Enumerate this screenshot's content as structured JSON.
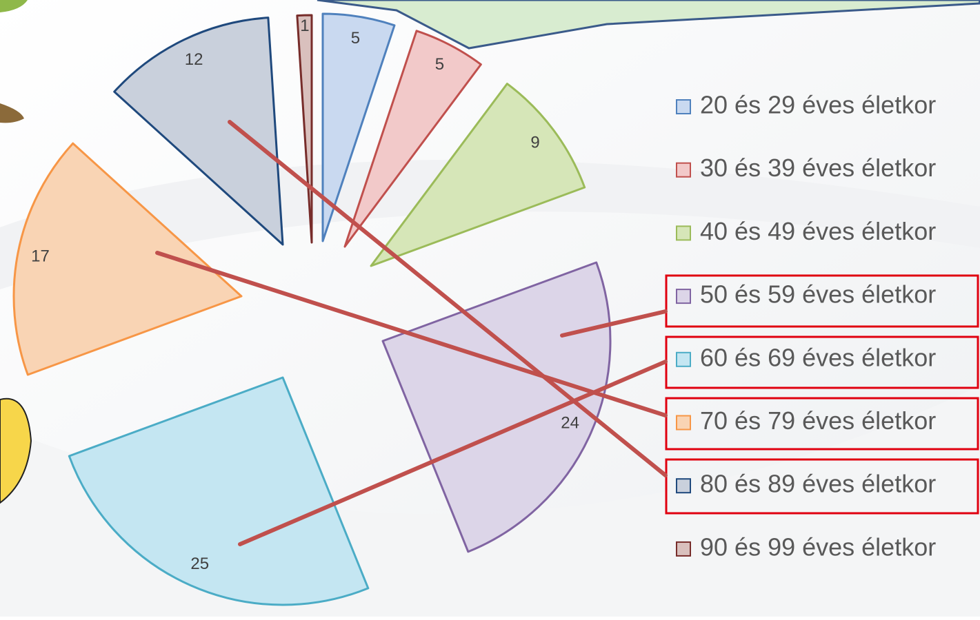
{
  "chart_data": {
    "type": "pie",
    "categories": [
      "20 és 29 éves életkor",
      "30 és 39 éves életkor",
      "40 és 49 éves életkor",
      "50 és 59 éves életkor",
      "60 és 69 éves életkor",
      "70 és 79 éves életkor",
      "80 és 89 éves életkor",
      "90 és 99 éves életkor"
    ],
    "values": [
      5,
      5,
      9,
      24,
      25,
      17,
      12,
      1
    ],
    "colors": [
      "#c9d9f0",
      "#f2c9c9",
      "#d6e6b8",
      "#dcd5e8",
      "#c4e6f2",
      "#f9d4b4",
      "#c9d0dc",
      "#d9c0bd"
    ],
    "legend": "right"
  }
}
